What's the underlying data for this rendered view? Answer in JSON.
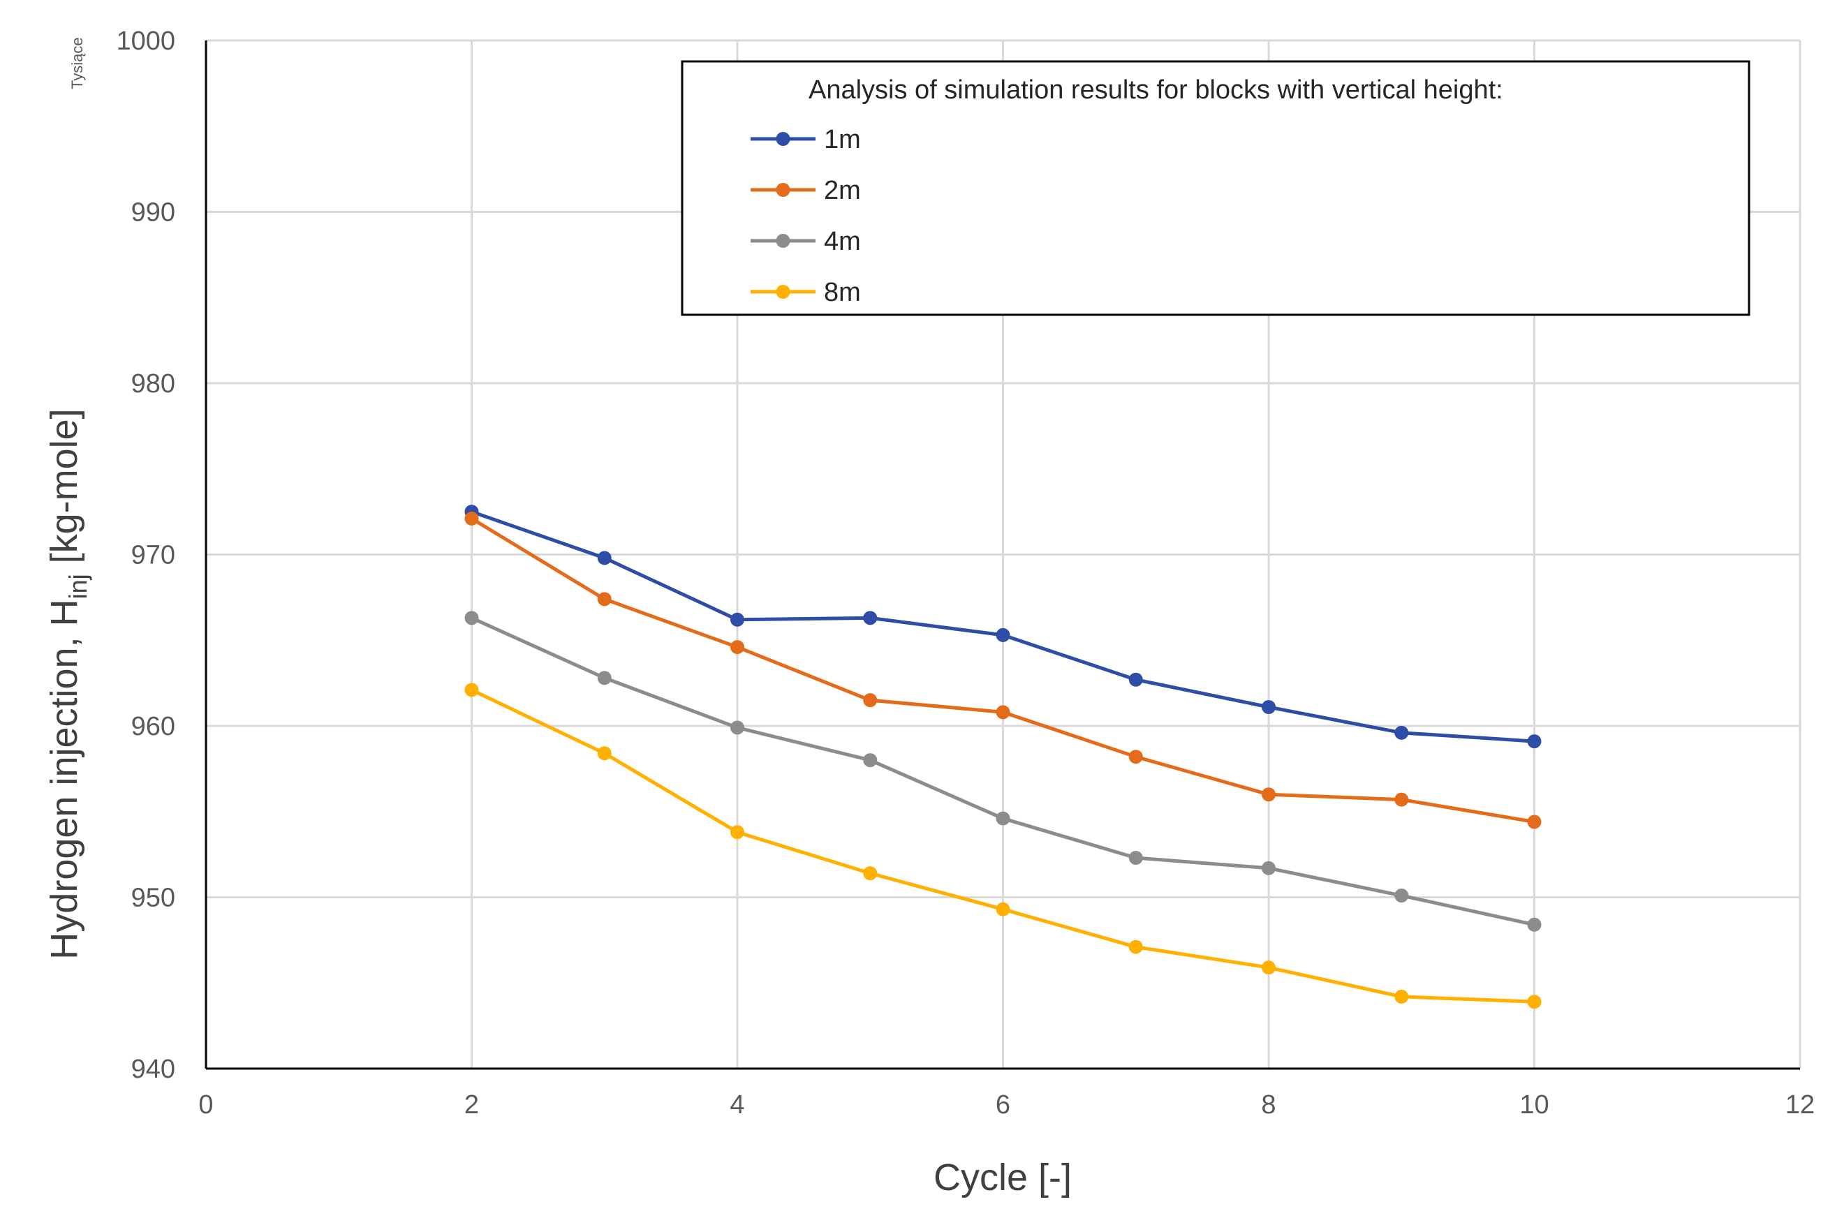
{
  "chart_data": {
    "type": "line",
    "title": "",
    "xlabel": "Cycle [-]",
    "ylabel_main": "Hydrogen injection, H",
    "ylabel_sub": "inj",
    "ylabel_tail": " [kg-mole]",
    "y_unit_note": "Tysiące",
    "xlim": [
      0,
      12
    ],
    "ylim": [
      940,
      1000
    ],
    "x_ticks": [
      0,
      2,
      4,
      6,
      8,
      10,
      12
    ],
    "y_ticks": [
      940,
      950,
      960,
      970,
      980,
      990,
      1000
    ],
    "grid": true,
    "legend": {
      "title": "Analysis of simulation results for blocks with vertical height:",
      "position": "top-right"
    },
    "x": [
      2,
      3,
      4,
      5,
      6,
      7,
      8,
      9,
      10
    ],
    "series": [
      {
        "name": "1m",
        "color": "#2E4DA7",
        "values": [
          972.5,
          969.8,
          966.2,
          966.3,
          965.3,
          962.7,
          961.1,
          959.6,
          959.1
        ]
      },
      {
        "name": "2m",
        "color": "#E46B1A",
        "values": [
          972.1,
          967.4,
          964.6,
          961.5,
          960.8,
          958.2,
          956.0,
          955.7,
          954.4
        ]
      },
      {
        "name": "4m",
        "color": "#8C8C8C",
        "values": [
          966.3,
          962.8,
          959.9,
          958.0,
          954.6,
          952.3,
          951.7,
          950.1,
          948.4
        ]
      },
      {
        "name": "8m",
        "color": "#FFB000",
        "values": [
          962.1,
          958.4,
          953.8,
          951.4,
          949.3,
          947.1,
          945.9,
          944.2,
          943.9
        ]
      }
    ]
  }
}
